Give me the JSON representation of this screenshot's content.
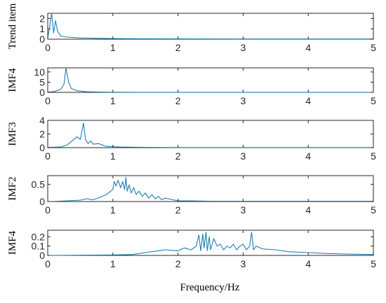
{
  "xlabel": "Frequency/Hz",
  "chart_data": [
    {
      "type": "line",
      "ylabel": "Trend item",
      "xlim": [
        0,
        5
      ],
      "ylim": [
        0,
        2.5
      ],
      "xticks": [
        "0",
        "1",
        "2",
        "3",
        "4",
        "5"
      ],
      "yticks": [
        0,
        1,
        2
      ],
      "ytick_labels": [
        "0",
        "1",
        "2"
      ],
      "x": [
        0,
        0.03,
        0.06,
        0.09,
        0.12,
        0.15,
        0.2,
        0.3,
        0.5,
        0.8,
        1.2,
        2,
        3,
        4,
        5
      ],
      "y": [
        0.1,
        1.2,
        2.5,
        0.6,
        1.8,
        0.8,
        0.3,
        0.2,
        0.12,
        0.08,
        0.05,
        0.03,
        0.02,
        0.02,
        0.02
      ]
    },
    {
      "type": "line",
      "ylabel": "IMF4",
      "xlim": [
        0,
        5
      ],
      "ylim": [
        0,
        12
      ],
      "xticks": [
        "0",
        "1",
        "2",
        "3",
        "4",
        "5"
      ],
      "yticks": [
        0,
        5,
        10
      ],
      "ytick_labels": [
        "0",
        "5",
        "10"
      ],
      "x": [
        0,
        0.1,
        0.2,
        0.25,
        0.28,
        0.32,
        0.36,
        0.45,
        0.6,
        0.9,
        1.5,
        2,
        3,
        4,
        5
      ],
      "y": [
        0.1,
        0.4,
        1.5,
        4,
        12,
        5,
        2,
        0.8,
        0.3,
        0.1,
        0.05,
        0.02,
        0.02,
        0.02,
        0.02
      ]
    },
    {
      "type": "line",
      "ylabel": "IMF3",
      "xlim": [
        0,
        5
      ],
      "ylim": [
        0,
        4
      ],
      "xticks": [
        "0",
        "1",
        "2",
        "3",
        "4",
        "5"
      ],
      "yticks": [
        0,
        2,
        4
      ],
      "ytick_labels": [
        "0",
        "2",
        "4"
      ],
      "x": [
        0,
        0.2,
        0.3,
        0.4,
        0.45,
        0.5,
        0.55,
        0.58,
        0.62,
        0.66,
        0.7,
        0.78,
        0.9,
        1.1,
        1.5,
        2,
        3,
        4,
        5
      ],
      "y": [
        0.05,
        0.1,
        0.4,
        1.2,
        1.6,
        1.2,
        3.6,
        1.2,
        0.6,
        1.0,
        0.5,
        0.6,
        0.2,
        0.1,
        0.05,
        0.02,
        0.02,
        0.02,
        0.02
      ]
    },
    {
      "type": "line",
      "ylabel": "IMF2",
      "xlim": [
        0,
        5
      ],
      "ylim": [
        0,
        0.75
      ],
      "xticks": [
        "0",
        "1",
        "2",
        "3",
        "4",
        "5"
      ],
      "yticks": [
        0,
        0.5
      ],
      "ytick_labels": [
        "0",
        "0.5"
      ],
      "x": [
        0,
        0.3,
        0.5,
        0.6,
        0.7,
        0.8,
        0.9,
        1.0,
        1.02,
        1.05,
        1.08,
        1.12,
        1.15,
        1.18,
        1.2,
        1.22,
        1.25,
        1.28,
        1.32,
        1.36,
        1.4,
        1.45,
        1.5,
        1.55,
        1.6,
        1.65,
        1.7,
        1.75,
        1.8,
        1.9,
        2.0,
        2.2,
        2.5,
        3,
        4,
        5
      ],
      "y": [
        0,
        0.02,
        0.04,
        0.08,
        0.05,
        0.12,
        0.2,
        0.35,
        0.58,
        0.45,
        0.62,
        0.4,
        0.58,
        0.35,
        0.7,
        0.3,
        0.48,
        0.25,
        0.4,
        0.2,
        0.3,
        0.15,
        0.25,
        0.1,
        0.2,
        0.08,
        0.15,
        0.05,
        0.1,
        0.06,
        0.02,
        0.02,
        0.01,
        0.01,
        0.01,
        0.01
      ]
    },
    {
      "type": "line",
      "ylabel": "IMF4",
      "xlim": [
        0,
        5
      ],
      "ylim": [
        0,
        0.27
      ],
      "xticks": [
        "0",
        "1",
        "2",
        "3",
        "4",
        "5"
      ],
      "yticks": [
        0,
        0.1,
        0.2
      ],
      "ytick_labels": [
        "0",
        "0.1",
        "0.2"
      ],
      "x": [
        0,
        1.0,
        1.3,
        1.5,
        1.7,
        1.8,
        2.0,
        2.1,
        2.2,
        2.28,
        2.32,
        2.35,
        2.38,
        2.4,
        2.43,
        2.45,
        2.48,
        2.5,
        2.55,
        2.6,
        2.65,
        2.7,
        2.75,
        2.8,
        2.85,
        2.9,
        2.95,
        3.0,
        3.05,
        3.1,
        3.13,
        3.16,
        3.2,
        3.3,
        3.5,
        3.7,
        4.0,
        4.3,
        4.6,
        5
      ],
      "y": [
        0,
        0.005,
        0.01,
        0.03,
        0.05,
        0.06,
        0.05,
        0.08,
        0.06,
        0.1,
        0.22,
        0.05,
        0.23,
        0.08,
        0.25,
        0.05,
        0.2,
        0.06,
        0.18,
        0.1,
        0.12,
        0.06,
        0.1,
        0.08,
        0.12,
        0.06,
        0.1,
        0.12,
        0.06,
        0.1,
        0.25,
        0.06,
        0.1,
        0.07,
        0.06,
        0.04,
        0.03,
        0.02,
        0.015,
        0.01
      ]
    }
  ]
}
